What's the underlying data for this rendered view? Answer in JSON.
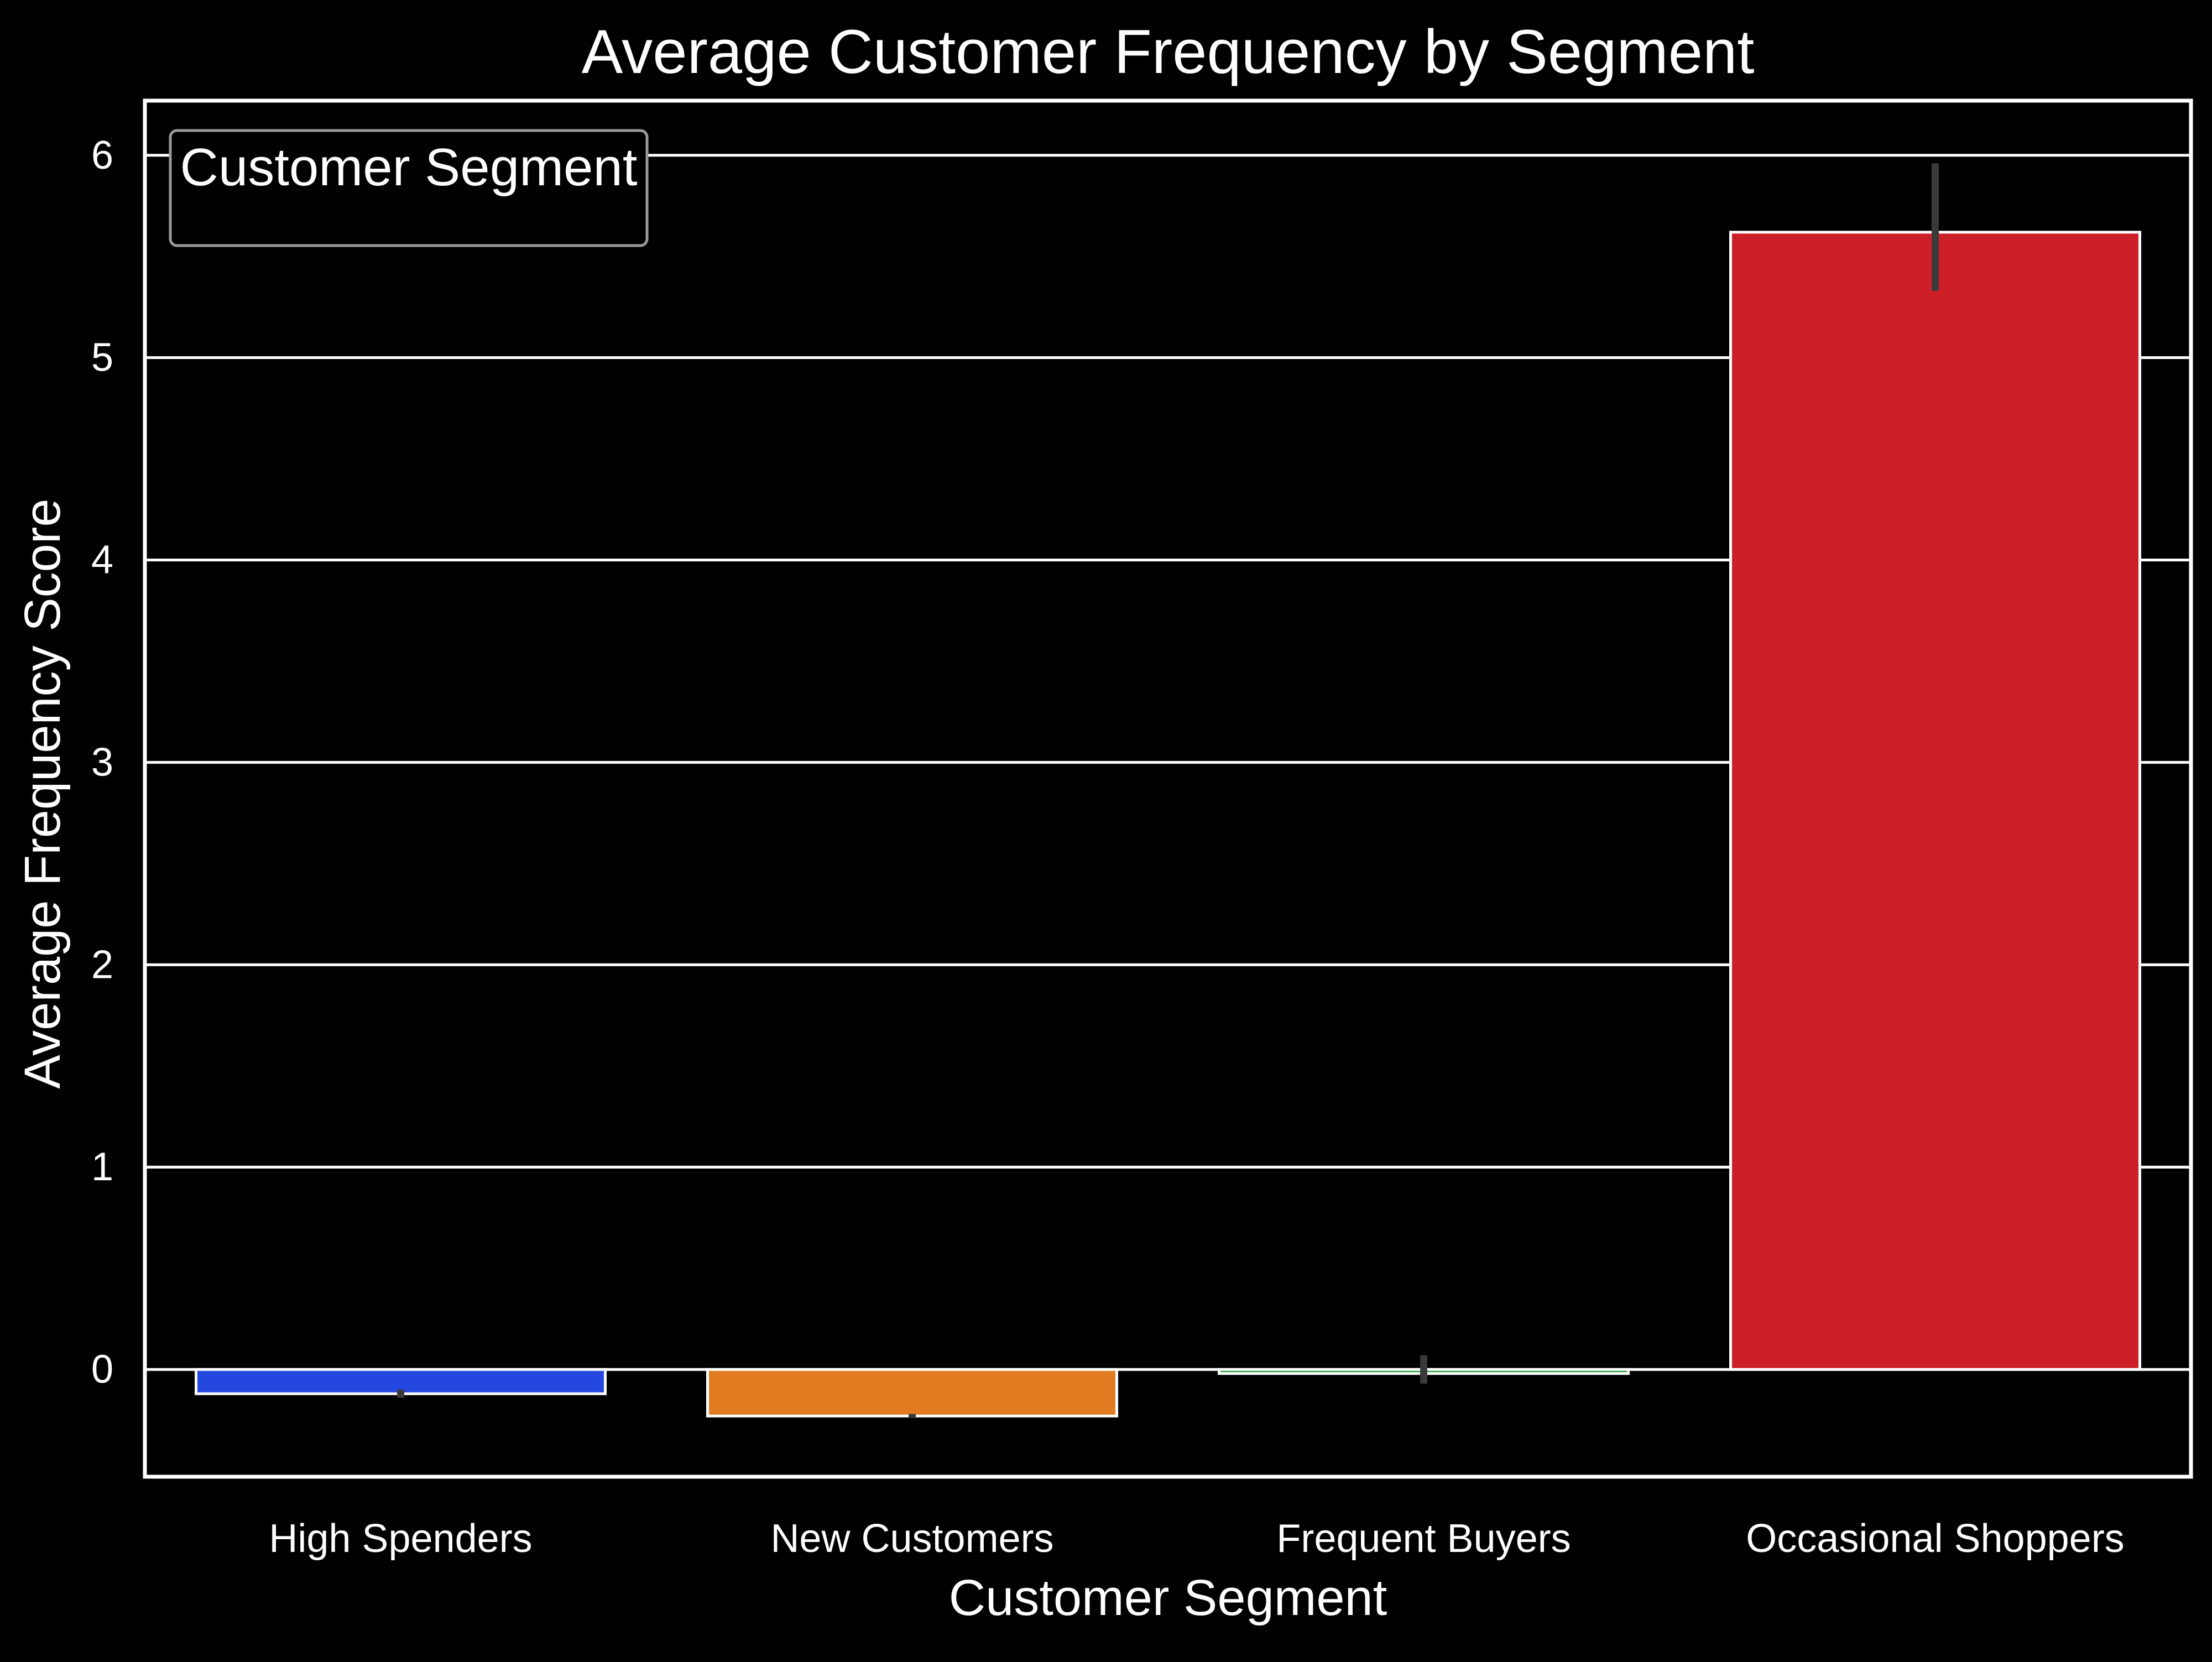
{
  "chart_data": {
    "type": "bar",
    "title": "Average Customer Frequency by Segment",
    "xlabel": "Customer Segment",
    "ylabel": "Average Frequency Score",
    "categories": [
      "High Spenders",
      "New Customers",
      "Frequent Buyers",
      "Occasional Shoppers"
    ],
    "values": [
      -0.12,
      -0.23,
      -0.02,
      5.62
    ],
    "error_bars": [
      {
        "low": -0.14,
        "high": -0.1
      },
      {
        "low": -0.24,
        "high": -0.22
      },
      {
        "low": -0.07,
        "high": 0.07
      },
      {
        "low": 5.33,
        "high": 5.96
      }
    ],
    "colors": [
      "#2447e0",
      "#e07b21",
      "#1f9e3a",
      "#cc1f27"
    ],
    "ylim": [
      -0.53,
      6.27
    ],
    "y_ticks": [
      0,
      1,
      2,
      3,
      4,
      5,
      6
    ],
    "grid": true,
    "legend": {
      "title": "Customer Segment",
      "placement": "top-left"
    },
    "style": {
      "background": "#000000",
      "text": "#ffffff",
      "gridline": "#ffffff",
      "edge": "#ffffff",
      "errorbar": "#3a3a3a"
    }
  }
}
